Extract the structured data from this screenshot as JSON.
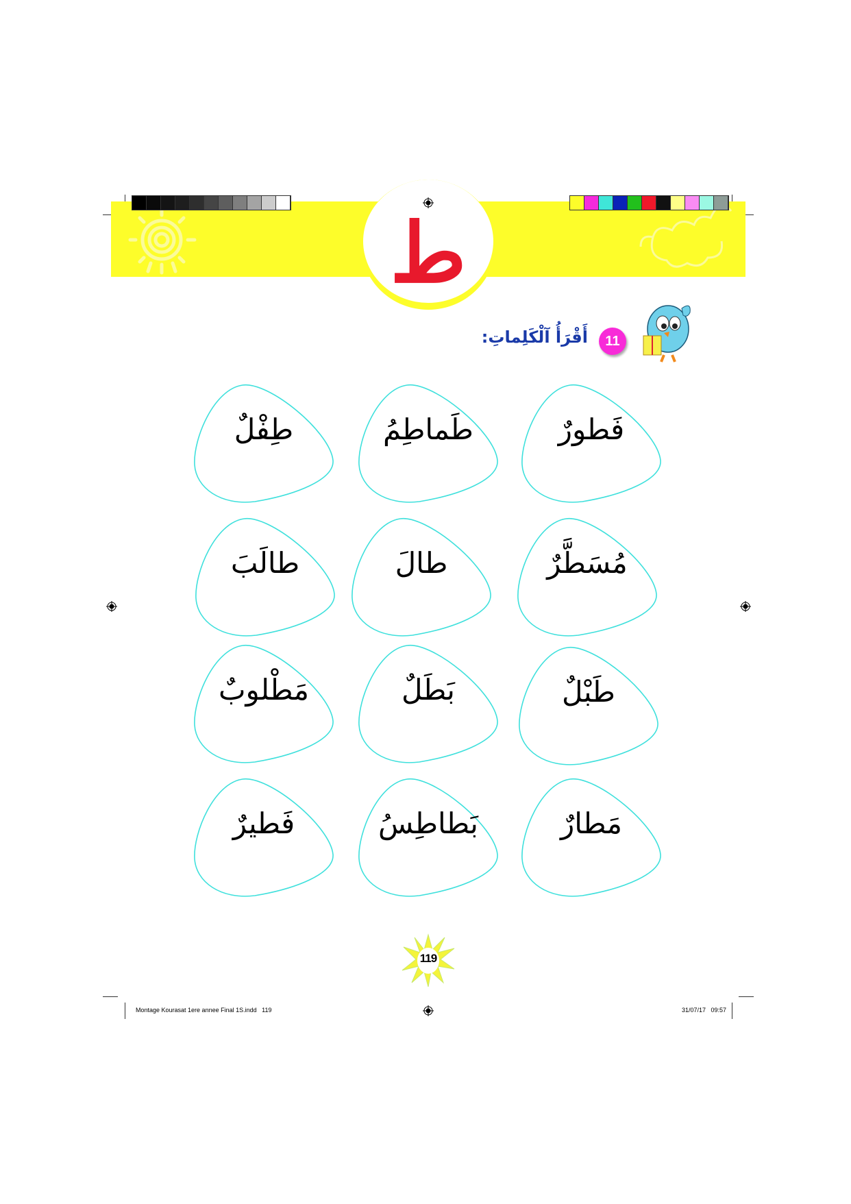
{
  "header": {
    "letter": "ط",
    "letter_color": "#e8192c",
    "band_color": "#fdfd2a",
    "gray_swatches": [
      "#000000",
      "#0a0a0a",
      "#141414",
      "#1e1e1e",
      "#2e2e2e",
      "#454545",
      "#5e5e5e",
      "#7f7f7f",
      "#a4a4a4",
      "#cccccc",
      "#ffffff"
    ],
    "color_swatches": [
      "#fdfd2a",
      "#f52bdc",
      "#3fe6d8",
      "#0a22b8",
      "#22c01c",
      "#f0182a",
      "#111111",
      "#ffff88",
      "#f98cf3",
      "#9bf8e3",
      "#8d9c97"
    ]
  },
  "exercise": {
    "number": "11",
    "instruction": "أَقْرَأُ آلْكَلِماتِ:",
    "badge_color": "#f82bd8",
    "title_color": "#1a3aa8"
  },
  "words": [
    [
      "طِفْلٌ",
      "طَماطِمُ",
      "فَطورٌ"
    ],
    [
      "طالَبَ",
      "طالَ",
      "مُسَطَّرٌ"
    ],
    [
      "مَطْلوبٌ",
      "بَطَلٌ",
      "طَبْلٌ"
    ],
    [
      "فَطيرٌ",
      "بَطاطِسُ",
      "مَطارٌ"
    ]
  ],
  "oval_color": "#3ee0dc",
  "page_number": "119",
  "footer": {
    "file": "Montage Kourasat 1ere annee Final 1S.indd   119",
    "datetime": "31/07/17   09:57"
  }
}
